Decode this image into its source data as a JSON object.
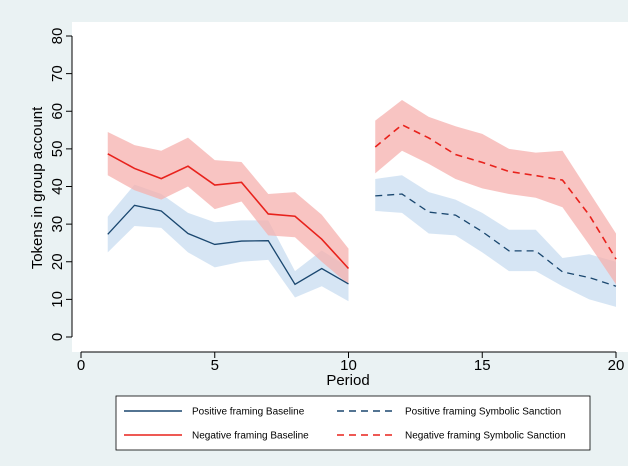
{
  "chart_data": {
    "type": "line",
    "xlabel": "Period",
    "ylabel": "Tokens in group account",
    "xlim": [
      0,
      20
    ],
    "ylim": [
      0,
      80
    ],
    "xticks": [
      0,
      5,
      10,
      15,
      20
    ],
    "yticks": [
      0,
      10,
      20,
      30,
      40,
      50,
      60,
      70,
      80
    ],
    "grid": false,
    "legend_position": "bottom",
    "series": [
      {
        "name": "Positive framing Baseline",
        "color": "#1a476f",
        "band_color": "#c8dcf0",
        "dash": "solid",
        "x": [
          1,
          2,
          3,
          4,
          5,
          6,
          7,
          8,
          9,
          10
        ],
        "values": [
          27.3,
          35.0,
          33.5,
          27.5,
          24.6,
          25.5,
          25.6,
          14.0,
          18.2,
          14.1
        ],
        "lower": [
          22.5,
          29.5,
          29.0,
          22.5,
          18.5,
          20.0,
          20.5,
          10.5,
          13.5,
          9.5
        ],
        "upper": [
          32.0,
          40.5,
          38.0,
          33.0,
          30.5,
          31.0,
          31.0,
          17.5,
          23.0,
          18.5
        ]
      },
      {
        "name": "Negative framing Baseline",
        "color": "#e8221c",
        "band_color": "#f6b0ad",
        "dash": "solid",
        "x": [
          1,
          2,
          3,
          4,
          5,
          6,
          7,
          8,
          9,
          10
        ],
        "values": [
          48.7,
          44.8,
          42.1,
          45.4,
          40.4,
          41.1,
          32.7,
          32.1,
          26.0,
          18.2
        ],
        "lower": [
          43.0,
          39.0,
          36.5,
          40.0,
          34.0,
          36.0,
          27.0,
          26.5,
          20.0,
          14.0
        ],
        "upper": [
          54.5,
          51.0,
          49.5,
          53.0,
          47.0,
          46.5,
          38.0,
          38.5,
          32.5,
          23.5
        ]
      },
      {
        "name": "Positive framing Symbolic Sanction",
        "color": "#1a476f",
        "band_color": "#c8dcf0",
        "dash": "dash",
        "x": [
          11,
          12,
          13,
          14,
          15,
          16,
          17,
          18,
          19,
          20
        ],
        "values": [
          37.5,
          38.0,
          33.2,
          32.4,
          28.0,
          22.9,
          22.9,
          17.3,
          15.8,
          13.5
        ],
        "lower": [
          33.5,
          33.0,
          27.5,
          27.0,
          22.5,
          17.5,
          17.5,
          13.5,
          10.0,
          8.0
        ],
        "upper": [
          42.0,
          43.0,
          38.5,
          36.5,
          33.0,
          28.5,
          28.5,
          21.0,
          22.0,
          20.0
        ]
      },
      {
        "name": "Negative framing Symbolic Sanction",
        "color": "#e8221c",
        "band_color": "#f6b0ad",
        "dash": "dash",
        "x": [
          11,
          12,
          13,
          14,
          15,
          16,
          17,
          18,
          19,
          20
        ],
        "values": [
          50.5,
          56.4,
          52.9,
          48.5,
          46.4,
          44.0,
          42.9,
          41.7,
          32.4,
          20.7
        ],
        "lower": [
          43.5,
          49.5,
          46.0,
          42.0,
          39.5,
          38.0,
          37.0,
          34.5,
          24.5,
          14.0
        ],
        "upper": [
          57.5,
          63.0,
          58.5,
          56.0,
          54.0,
          50.0,
          49.0,
          49.5,
          38.5,
          27.5
        ]
      }
    ]
  }
}
